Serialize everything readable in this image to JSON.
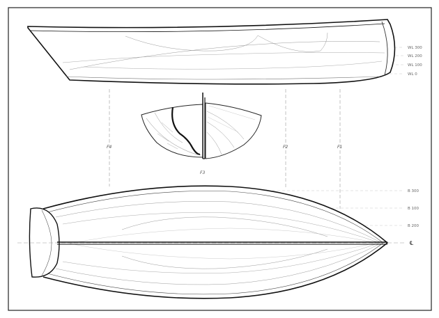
{
  "drawing": {
    "profile_waterline_labels": [
      "WL 300",
      "WL 200",
      "WL 100",
      "WL 0"
    ],
    "station_labels": [
      "F4",
      "F3",
      "F2",
      "F1"
    ],
    "plan_buttock_labels": [
      "B 300",
      "B 100",
      "B 200"
    ],
    "centerline_label": "℄"
  },
  "colors": {
    "outline": "#111111",
    "construction_line": "#9a9a9a",
    "label": "#666666"
  }
}
